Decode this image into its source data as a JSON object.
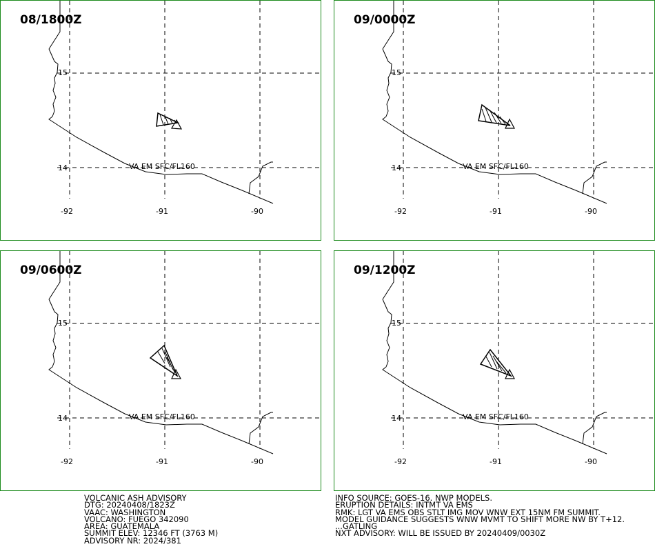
{
  "panels": [
    {
      "title": "08/1800Z",
      "label": "VA EM SFC/FL160"
    },
    {
      "title": "09/0000Z",
      "label": "VA EM SFC/FL160"
    },
    {
      "title": "09/0600Z",
      "label": "VA EM SFC/FL160"
    },
    {
      "title": "09/1200Z",
      "label": "VA EM SFC/FL160"
    }
  ],
  "grid": {
    "lat_labels": [
      "15",
      "14"
    ],
    "lon_labels": [
      "-92",
      "-91",
      "-90"
    ]
  },
  "advisory_left": [
    "VOLCANIC ASH ADVISORY",
    "DTG: 20240408/1823Z",
    "VAAC: WASHINGTON",
    "VOLCANO: FUEGO 342090",
    "AREA: GUATEMALA",
    "SUMMIT ELEV: 12346 FT (3763 M)",
    "ADVISORY NR: 2024/381"
  ],
  "advisory_right": [
    "INFO SOURCE: GOES-16. NWP MODELS.",
    "ERUPTION DETAILS: INTMT VA EMS",
    "RMK: LGT VA EMS OBS STLT IMG MOV WNW EXT 15NM FM SUMMIT.",
    "MODEL GUIDANCE SUGGESTS WNW MVMT TO SHIFT MORE NW BY T+12.",
    "...GATLING",
    "NXT ADVISORY: WILL BE ISSUED BY 20240409/0030Z"
  ],
  "colors": {
    "frame": "#1a8a1a",
    "lines": "#000000"
  }
}
